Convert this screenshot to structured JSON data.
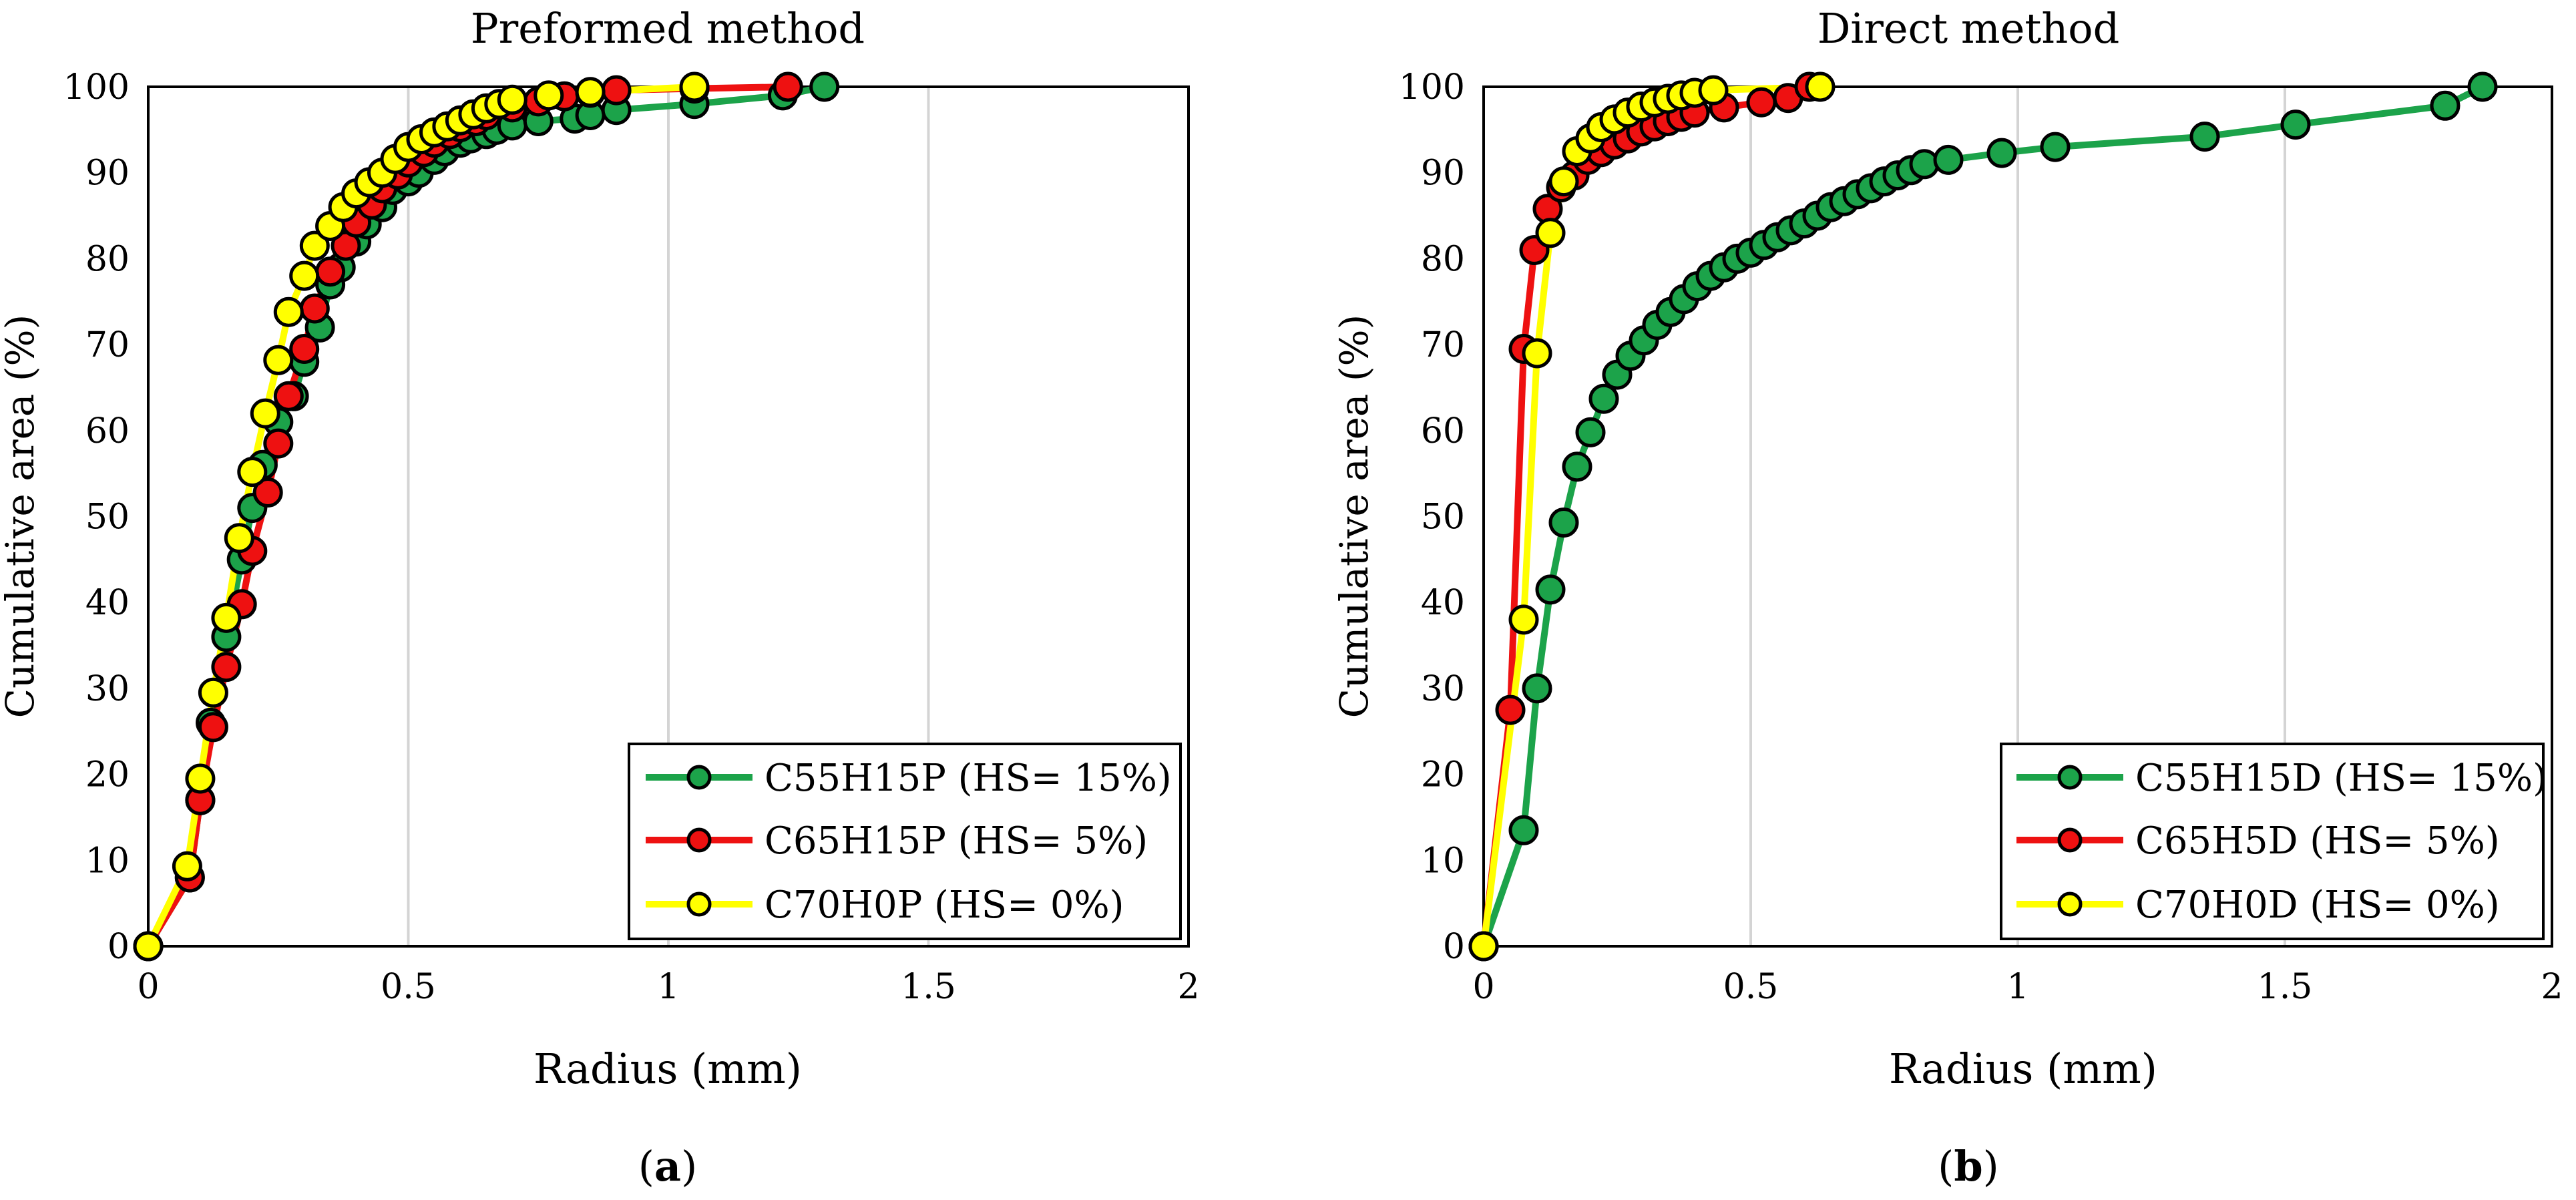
{
  "colors": {
    "green": "#1ca34a",
    "red": "#ee1111",
    "yellow": "#ffff00",
    "grid": "#d4d4d4",
    "axis": "#000000"
  },
  "chart_data": [
    {
      "type": "line",
      "title": "Preformed method",
      "xlabel": "Radius (mm)",
      "ylabel": "Cumulative area (%)",
      "xlim": [
        0,
        2
      ],
      "ylim": [
        0,
        100
      ],
      "xticks": [
        0,
        0.5,
        1,
        1.5,
        2
      ],
      "xtick_labels": [
        "0",
        "0.5",
        "1",
        "1.5",
        "2"
      ],
      "yticks": [
        0,
        10,
        20,
        30,
        40,
        50,
        60,
        70,
        80,
        90,
        100
      ],
      "ytick_labels": [
        "0",
        "10",
        "20",
        "30",
        "40",
        "50",
        "60",
        "70",
        "80",
        "90",
        "100"
      ],
      "grid": true,
      "legend_position": "bottom-right",
      "caption_letter": "a",
      "series": [
        {
          "name": "C55H15P (HS= 15%)",
          "color": "green",
          "x": [
            0,
            0.08,
            0.1,
            0.12,
            0.15,
            0.18,
            0.2,
            0.22,
            0.25,
            0.28,
            0.3,
            0.33,
            0.35,
            0.37,
            0.4,
            0.42,
            0.45,
            0.47,
            0.5,
            0.52,
            0.55,
            0.57,
            0.6,
            0.62,
            0.65,
            0.67,
            0.7,
            0.75,
            0.82,
            0.85,
            0.9,
            1.05,
            1.22,
            1.3
          ],
          "y": [
            0,
            8,
            17,
            26,
            36,
            45,
            51,
            56,
            61,
            64,
            68,
            72,
            77,
            79,
            82,
            84,
            86,
            88,
            89,
            90,
            91.5,
            92.5,
            93.5,
            94,
            94.5,
            95,
            95.5,
            96,
            96.3,
            96.7,
            97.3,
            98,
            99,
            100
          ]
        },
        {
          "name": "C65H15P (HS= 5%)",
          "color": "red",
          "x": [
            0,
            0.08,
            0.1,
            0.125,
            0.15,
            0.18,
            0.2,
            0.23,
            0.25,
            0.27,
            0.3,
            0.32,
            0.35,
            0.38,
            0.4,
            0.43,
            0.45,
            0.48,
            0.5,
            0.53,
            0.55,
            0.58,
            0.6,
            0.63,
            0.65,
            0.7,
            0.75,
            0.8,
            0.85,
            0.9,
            1.05,
            1.23
          ],
          "y": [
            0,
            8,
            17,
            25.5,
            32.5,
            39.8,
            46,
            52.8,
            58.5,
            64,
            69.5,
            74.2,
            78.5,
            81.5,
            84.2,
            86.3,
            88.2,
            89.8,
            91.2,
            92.4,
            93.5,
            94.5,
            95.3,
            96,
            96.7,
            97.6,
            98.3,
            98.9,
            99.3,
            99.6,
            99.8,
            100
          ]
        },
        {
          "name": "C70H0P (HS= 0%)",
          "color": "yellow",
          "x": [
            0,
            0.075,
            0.1,
            0.125,
            0.15,
            0.175,
            0.2,
            0.225,
            0.25,
            0.27,
            0.3,
            0.32,
            0.35,
            0.375,
            0.4,
            0.425,
            0.45,
            0.475,
            0.5,
            0.525,
            0.55,
            0.575,
            0.6,
            0.625,
            0.65,
            0.675,
            0.7,
            0.77,
            0.85,
            1.05
          ],
          "y": [
            0,
            9.3,
            19.5,
            29.5,
            38.2,
            47.5,
            55.2,
            62,
            68.2,
            73.8,
            78,
            81.5,
            83.8,
            86,
            87.6,
            88.9,
            90,
            91.6,
            93,
            93.9,
            94.7,
            95.4,
            96.1,
            96.8,
            97.5,
            98,
            98.5,
            99,
            99.4,
            100
          ]
        }
      ]
    },
    {
      "type": "line",
      "title": "Direct method",
      "xlabel": "Radius (mm)",
      "ylabel": "Cumulative area (%)",
      "xlim": [
        0,
        2
      ],
      "ylim": [
        0,
        100
      ],
      "xticks": [
        0,
        0.5,
        1,
        1.5,
        2
      ],
      "xtick_labels": [
        "0",
        "0.5",
        "1",
        "1.5",
        "2"
      ],
      "yticks": [
        0,
        10,
        20,
        30,
        40,
        50,
        60,
        70,
        80,
        90,
        100
      ],
      "ytick_labels": [
        "0",
        "10",
        "20",
        "30",
        "40",
        "50",
        "60",
        "70",
        "80",
        "90",
        "100"
      ],
      "grid": true,
      "legend_position": "bottom-right",
      "caption_letter": "b",
      "series": [
        {
          "name": "C55H15D (HS= 15%)",
          "color": "green",
          "x": [
            0,
            0.075,
            0.1,
            0.125,
            0.15,
            0.175,
            0.2,
            0.225,
            0.25,
            0.275,
            0.3,
            0.325,
            0.35,
            0.375,
            0.4,
            0.425,
            0.45,
            0.475,
            0.5,
            0.525,
            0.55,
            0.575,
            0.6,
            0.625,
            0.65,
            0.675,
            0.7,
            0.725,
            0.75,
            0.775,
            0.8,
            0.825,
            0.87,
            0.97,
            1.07,
            1.35,
            1.52,
            1.8,
            1.87
          ],
          "y": [
            0,
            13.5,
            30,
            41.5,
            49.3,
            55.8,
            59.8,
            63.7,
            66.5,
            68.7,
            70.5,
            72.3,
            73.8,
            75.3,
            76.8,
            78,
            79,
            80,
            80.7,
            81.6,
            82.5,
            83.3,
            84.1,
            85,
            86,
            86.7,
            87.5,
            88.2,
            89,
            89.7,
            90.3,
            91,
            91.5,
            92.3,
            93,
            94.2,
            95.6,
            97.8,
            100
          ]
        },
        {
          "name": "C65H5D (HS= 5%)",
          "color": "red",
          "x": [
            0,
            0.05,
            0.075,
            0.095,
            0.12,
            0.145,
            0.17,
            0.195,
            0.22,
            0.245,
            0.27,
            0.295,
            0.32,
            0.345,
            0.37,
            0.395,
            0.45,
            0.52,
            0.57,
            0.61
          ],
          "y": [
            0,
            27.5,
            69.5,
            81,
            85.8,
            88.3,
            89.7,
            91.5,
            92.4,
            93.3,
            94,
            94.8,
            95.4,
            96,
            96.5,
            97,
            97.6,
            98.2,
            98.7,
            100
          ]
        },
        {
          "name": "C70H0D (HS= 0%)",
          "color": "yellow",
          "x": [
            0,
            0.075,
            0.1,
            0.125,
            0.15,
            0.175,
            0.2,
            0.22,
            0.245,
            0.27,
            0.295,
            0.32,
            0.345,
            0.37,
            0.395,
            0.43,
            0.63
          ],
          "y": [
            0,
            38,
            69,
            83,
            89,
            92.5,
            94,
            95.3,
            96.2,
            97,
            97.7,
            98.2,
            98.6,
            99,
            99.3,
            99.6,
            100
          ]
        }
      ]
    }
  ]
}
